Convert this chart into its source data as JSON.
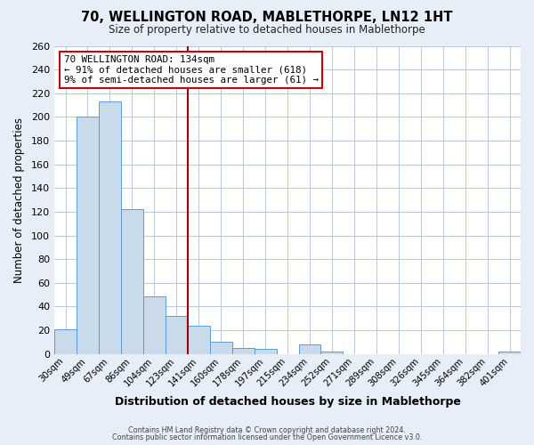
{
  "title": "70, WELLINGTON ROAD, MABLETHORPE, LN12 1HT",
  "subtitle": "Size of property relative to detached houses in Mablethorpe",
  "xlabel": "Distribution of detached houses by size in Mablethorpe",
  "ylabel": "Number of detached properties",
  "footer_line1": "Contains HM Land Registry data © Crown copyright and database right 2024.",
  "footer_line2": "Contains public sector information licensed under the Open Government Licence v3.0.",
  "bin_labels": [
    "30sqm",
    "49sqm",
    "67sqm",
    "86sqm",
    "104sqm",
    "123sqm",
    "141sqm",
    "160sqm",
    "178sqm",
    "197sqm",
    "215sqm",
    "234sqm",
    "252sqm",
    "271sqm",
    "289sqm",
    "308sqm",
    "326sqm",
    "345sqm",
    "364sqm",
    "382sqm",
    "401sqm"
  ],
  "bin_values": [
    21,
    200,
    213,
    122,
    49,
    32,
    24,
    10,
    5,
    4,
    0,
    8,
    2,
    0,
    0,
    0,
    0,
    0,
    0,
    0,
    2
  ],
  "bar_color": "#c9daea",
  "bar_edge_color": "#5b9bd5",
  "vline_color": "#990000",
  "annotation_line1": "70 WELLINGTON ROAD: 134sqm",
  "annotation_line2": "← 91% of detached houses are smaller (618)",
  "annotation_line3": "9% of semi-detached houses are larger (61) →",
  "annotation_box_color": "white",
  "annotation_box_edge": "#cc0000",
  "ylim": [
    0,
    260
  ],
  "yticks": [
    0,
    20,
    40,
    60,
    80,
    100,
    120,
    140,
    160,
    180,
    200,
    220,
    240,
    260
  ],
  "bg_color": "#e8eef7",
  "plot_bg_color": "white",
  "grid_color": "#b8c8de"
}
